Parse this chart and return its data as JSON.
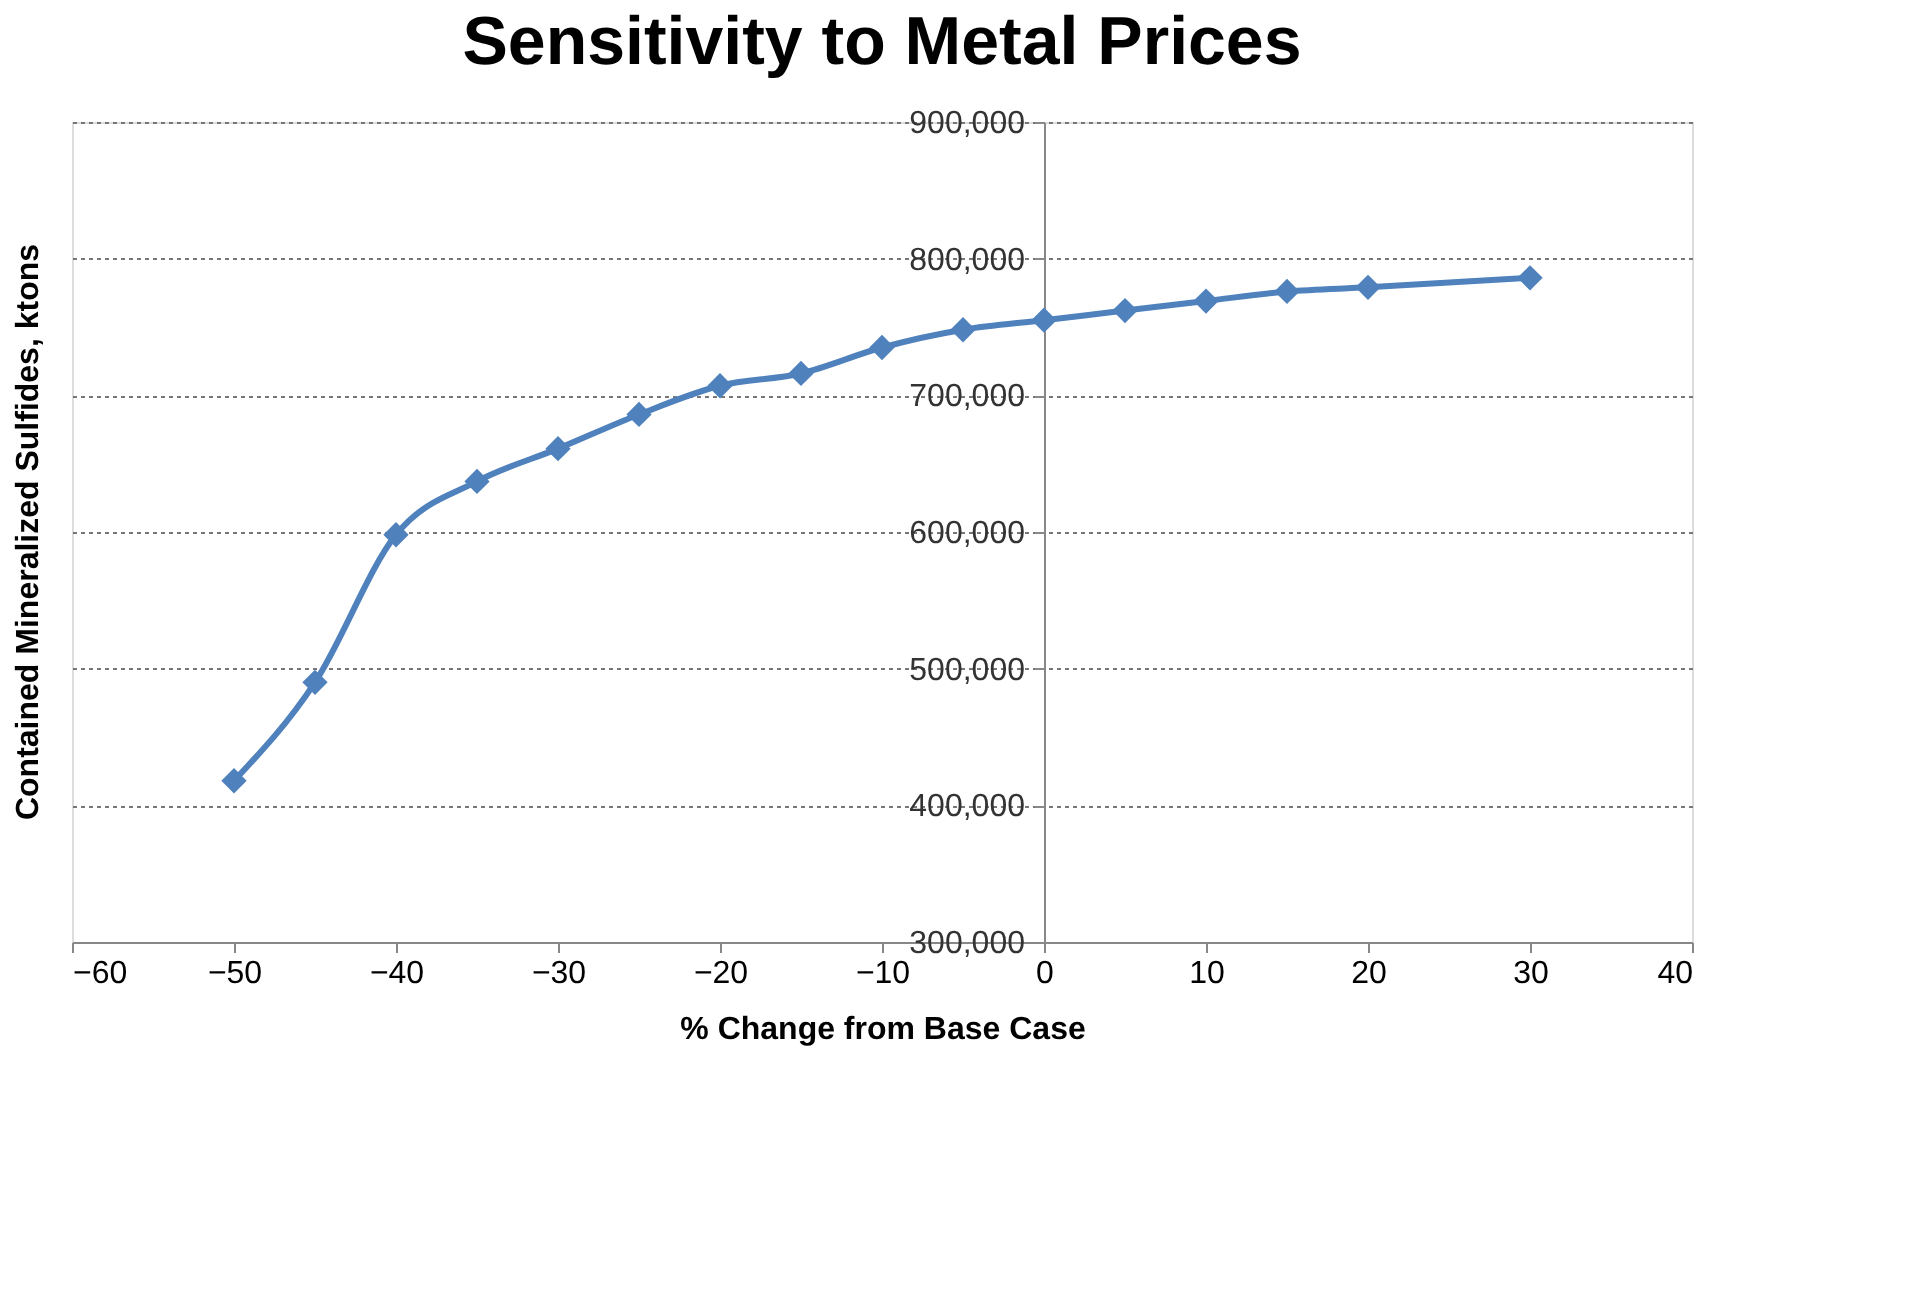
{
  "chart_data": {
    "type": "line",
    "title": "Sensitivity to Metal Prices",
    "xlabel": "% Change from Base Case",
    "ylabel": "Contained Mineralized Sulfides, ktons",
    "x": [
      -50,
      -45,
      -40,
      -35,
      -30,
      -25,
      -20,
      -15,
      -10,
      -5,
      0,
      5,
      10,
      15,
      20,
      30
    ],
    "series": [
      {
        "color": "#4f81bd",
        "values": [
          418000,
          490000,
          598000,
          637000,
          661000,
          686000,
          707000,
          716000,
          735000,
          748000,
          755000,
          762000,
          769000,
          776000,
          779000,
          786000
        ]
      }
    ],
    "xlim": [
      -60,
      40
    ],
    "xticks": [
      -60,
      -50,
      -40,
      -30,
      -20,
      -10,
      0,
      10,
      20,
      30,
      40
    ],
    "ylim": [
      300000,
      900000
    ],
    "yticks": [
      {
        "value": 300000,
        "label": "300,000"
      },
      {
        "value": 400000,
        "label": "400,000"
      },
      {
        "value": 500000,
        "label": "500,000"
      },
      {
        "value": 600000,
        "label": "600,000"
      },
      {
        "value": 700000,
        "label": "700,000"
      },
      {
        "value": 800000,
        "label": "800,000"
      },
      {
        "value": 900000,
        "label": "900,000"
      }
    ],
    "grid": "y",
    "marker": "diamond",
    "line_style": "solid"
  }
}
